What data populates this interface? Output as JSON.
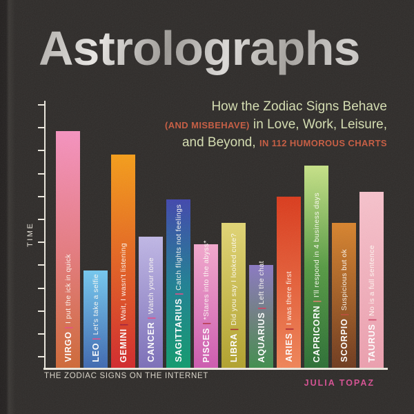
{
  "title": "Astrolographs",
  "subtitle": {
    "line1": "How the Zodiac Signs Behave",
    "line2_accent": "(AND MISBEHAVE)",
    "line2_rest": " in Love, Work, Leisure,",
    "line3_rest": "and Beyond, ",
    "line3_accent": "IN 112 HUMOROUS CHARTS"
  },
  "footer": {
    "caption": "THE ZODIAC SIGNS ON THE INTERNET",
    "author": "JULIA TOPAZ"
  },
  "colors": {
    "background": "#2e2b29",
    "title_silver": "#c9c6c2",
    "subtitle_text": "#d6dfb2",
    "subtitle_accent": "#c75b40",
    "axis": "#ece8de",
    "caption_text": "#dcd7cb",
    "author_text": "#d64f92"
  },
  "chart_data": {
    "type": "bar",
    "title": "THE ZODIAC SIGNS ON THE INTERNET",
    "xlabel": "",
    "ylabel": "TIME",
    "ylim": [
      0,
      100
    ],
    "y_tick_count": 12,
    "grid": false,
    "legend": false,
    "categories": [
      "VIRGO",
      "LEO",
      "GEMINI",
      "CANCER",
      "SAGITTARIUS",
      "PISCES",
      "LIBRA",
      "AQUARIUS",
      "ARIES",
      "CAPRICORN",
      "SCORPIO",
      "TAURUS"
    ],
    "values": [
      90,
      37,
      81,
      50,
      64,
      47,
      55,
      39,
      65,
      77,
      55,
      67
    ],
    "bars": [
      {
        "sign": "VIRGO",
        "phrase": "I put the ick in quick",
        "value": 90,
        "gradient": [
          "#cf6836",
          "#e57b80",
          "#f692bf"
        ],
        "divider": "#e84a86"
      },
      {
        "sign": "LEO",
        "phrase": "Let's take a selfie",
        "value": 37,
        "gradient": [
          "#3e68b0",
          "#74c8ef"
        ],
        "divider": "#e84a86"
      },
      {
        "sign": "GEMINI",
        "phrase": "Wait, I wasn't listening",
        "value": 81,
        "gradient": [
          "#d2282b",
          "#f59d18"
        ],
        "divider": "#9e1f3d"
      },
      {
        "sign": "CANCER",
        "phrase": "Watch your tone",
        "value": 50,
        "gradient": [
          "#7b6eb8",
          "#c0b7e6"
        ],
        "divider": "#e84a86"
      },
      {
        "sign": "SAGITTARIUS",
        "phrase": "Catch flights not feelings",
        "value": 64,
        "gradient": [
          "#0f9a6d",
          "#1e7f93",
          "#4046ac"
        ],
        "divider": "#e84a86"
      },
      {
        "sign": "PISCES",
        "phrase": "*Stares into the abyss*",
        "value": 47,
        "gradient": [
          "#cd59af",
          "#f3a8cd"
        ],
        "divider": "#b73348"
      },
      {
        "sign": "LIBRA",
        "phrase": "Did you say I looked cute?",
        "value": 55,
        "gradient": [
          "#b1a12b",
          "#e1d574"
        ],
        "divider": "#a8262e"
      },
      {
        "sign": "AQUARIUS",
        "phrase": "Left the chat",
        "value": 39,
        "gradient": [
          "#3f8d4c",
          "#6e7f7f",
          "#8a78c3"
        ],
        "divider": "#d93a5a"
      },
      {
        "sign": "ARIES",
        "phrase": "I was there first",
        "value": 65,
        "gradient": [
          "#f08457",
          "#da3a1b"
        ],
        "divider": "#a81f2e"
      },
      {
        "sign": "CAPRICORN",
        "phrase": "I'll respond in 4 business days",
        "value": 77,
        "gradient": [
          "#2b6e34",
          "#569a43",
          "#c7e287"
        ],
        "divider": "#e2806e"
      },
      {
        "sign": "SCORPIO",
        "phrase": "Suspicious but ok",
        "value": 55,
        "gradient": [
          "#6e391d",
          "#d8832c"
        ],
        "divider": "#c04a3a"
      },
      {
        "sign": "TAURUS",
        "phrase": "No is a full sentence",
        "value": 67,
        "gradient": [
          "#ec9fae",
          "#f7c2cc"
        ],
        "divider": "#cf4467"
      }
    ]
  }
}
